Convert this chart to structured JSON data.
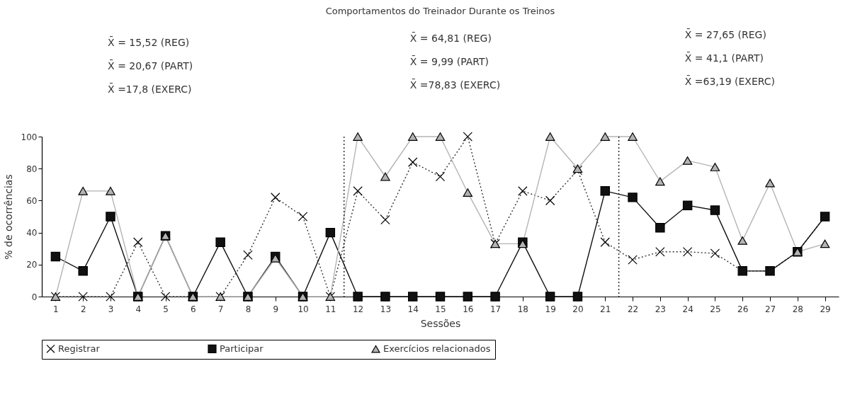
{
  "chart_data": {
    "type": "line",
    "title": "Comportamentos do Treinador Durante os Treinos",
    "xlabel": "Sessões",
    "ylabel": "% de ocorrências",
    "x": [
      1,
      2,
      3,
      4,
      5,
      6,
      7,
      8,
      9,
      10,
      11,
      12,
      13,
      14,
      15,
      16,
      17,
      18,
      19,
      20,
      21,
      22,
      23,
      24,
      25,
      26,
      27,
      28,
      29
    ],
    "xlim": [
      0.5,
      29.5
    ],
    "xticks": [
      1,
      2,
      3,
      4,
      5,
      6,
      7,
      8,
      9,
      10,
      11,
      12,
      13,
      14,
      15,
      16,
      17,
      18,
      19,
      20,
      21,
      22,
      23,
      24,
      25,
      26,
      27,
      28,
      29
    ],
    "ylim": [
      0,
      100
    ],
    "yticks": [
      0,
      20,
      40,
      60,
      80,
      100
    ],
    "grid": false,
    "legend": "bottom",
    "series": [
      {
        "name": "Registrar",
        "color": "#333333",
        "marker": "cross",
        "line_style": "dotted",
        "values": [
          0,
          0,
          0,
          34,
          0,
          0,
          0,
          26,
          62,
          50,
          0,
          66,
          48,
          84,
          75,
          100,
          33,
          66,
          60,
          79,
          34,
          23,
          28,
          28,
          27,
          16,
          16,
          28,
          50
        ]
      },
      {
        "name": "Participar",
        "color": "#111111",
        "marker": "square",
        "line_style": "solid",
        "values": [
          25,
          16,
          50,
          0,
          38,
          0,
          34,
          0,
          25,
          0,
          40,
          0,
          0,
          0,
          0,
          0,
          0,
          34,
          0,
          0,
          66,
          62,
          43,
          57,
          54,
          16,
          16,
          28,
          50
        ]
      },
      {
        "name": "Exercícios relacionados",
        "color": "#b4b4b4",
        "marker": "triangle",
        "line_style": "solid",
        "values": [
          0,
          66,
          66,
          0,
          38,
          0,
          0,
          0,
          24,
          0,
          0,
          100,
          75,
          100,
          100,
          65,
          33,
          33,
          100,
          80,
          100,
          100,
          72,
          85,
          81,
          35,
          71,
          28,
          33
        ]
      }
    ],
    "ref_lines": [
      {
        "axis": "x",
        "value": 11.5,
        "line_style": "dotted",
        "color": "#000000"
      },
      {
        "axis": "x",
        "value": 21.5,
        "line_style": "dotted",
        "color": "#000000"
      }
    ],
    "annotations": [
      "X̄ = 15,52 (REG)",
      "X̄ = 20,67 (PART)",
      "X̄ =17,8 (EXERC)",
      "X̄ = 64,81 (REG)",
      "X̄ = 9,99 (PART)",
      "X̄ =78,83 (EXERC)",
      "X̄ = 27,65 (REG)",
      "X̄ = 41,1 (PART)",
      "X̄ =63,19 (EXERC)"
    ]
  }
}
